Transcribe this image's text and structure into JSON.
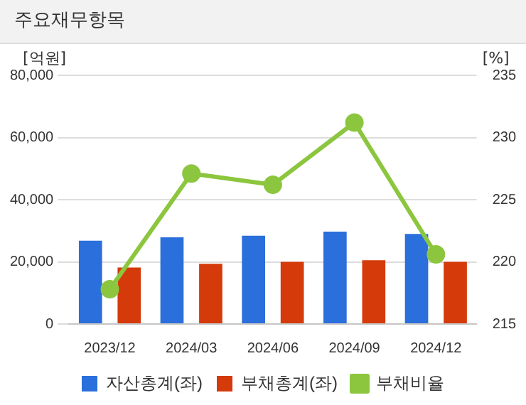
{
  "chart_data": {
    "type": "bar",
    "title": "주요재무항목",
    "ylabel": "[억원]",
    "y2label": "[%]",
    "categories": [
      "2023/12",
      "2024/03",
      "2024/06",
      "2024/09",
      "2024/12"
    ],
    "series": [
      {
        "name": "자산총계(좌)",
        "color": "#2a6fdb",
        "values": [
          26800,
          27900,
          28400,
          29700,
          29000
        ]
      },
      {
        "name": "부채총계(좌)",
        "color": "#d43a0a",
        "values": [
          18200,
          19400,
          20000,
          20500,
          20000
        ]
      },
      {
        "name": "부채비율",
        "type": "line",
        "axis": "y2",
        "color": "#8cc63f",
        "values": [
          217.8,
          227.1,
          226.2,
          231.2,
          220.6
        ],
        "marker": "circle"
      }
    ],
    "ylim": [
      0,
      80000
    ],
    "yticks": [
      0,
      {
        "value": 20000,
        "label": "20,000"
      },
      {
        "value": 40000,
        "label": "40,000"
      },
      {
        "value": 60000,
        "label": "60,000"
      },
      {
        "value": 80000,
        "label": "80,000"
      }
    ],
    "y2lim": [
      215,
      235
    ],
    "y2ticks": [
      215,
      220,
      225,
      230,
      235
    ],
    "grid": "y",
    "legend": "bottom"
  }
}
